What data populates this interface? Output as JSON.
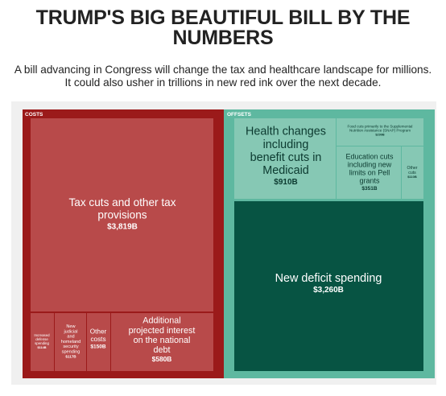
{
  "title": "TRUMP'S BIG BEAUTIFUL BILL BY THE NUMBERS",
  "subtitle": "A bill advancing in Congress will change the tax and healthcare landscape for millions. It could also usher in trillions in new red ink over the next decade.",
  "colors": {
    "costs_border": "#9b1a1a",
    "costs_tile": "#b84a4a",
    "offsets_border": "#5eb8a0",
    "offsets_tile": "#86c8b4",
    "deficit_tile": "#075443",
    "panel_bg": "#f0f0f0"
  },
  "chart_data": {
    "type": "treemap",
    "groups": [
      {
        "name": "COSTS",
        "items": [
          {
            "label": "Tax cuts and other tax provisions",
            "value_label": "$3,819B",
            "value": 3819
          },
          {
            "label": "Additional projected interest on the national debt",
            "value_label": "$580B",
            "value": 580
          },
          {
            "label": "Other costs",
            "value_label": "$150B",
            "value": 150
          },
          {
            "label": "New judicial and homeland security spending",
            "value_label": "$117B",
            "value": 117
          },
          {
            "label": "Increased defense spending",
            "value_label": "$114B",
            "value": 114
          }
        ]
      },
      {
        "name": "OFFSETS",
        "items": [
          {
            "label": "New deficit spending",
            "value_label": "$3,260B",
            "value": 3260
          },
          {
            "label": "Health changes including benefit cuts in Medicaid",
            "value_label": "$910B",
            "value": 910
          },
          {
            "label": "Education cuts including new limits on Pell grants",
            "value_label": "$351B",
            "value": 351
          },
          {
            "label": "Food cuts primarily to the Supplemental Nutrition Assistance (SNAP) Program",
            "value_label": "$299B",
            "value": 299
          },
          {
            "label": "Other cuts",
            "value_label": "$110B",
            "value": 110
          }
        ]
      }
    ]
  }
}
